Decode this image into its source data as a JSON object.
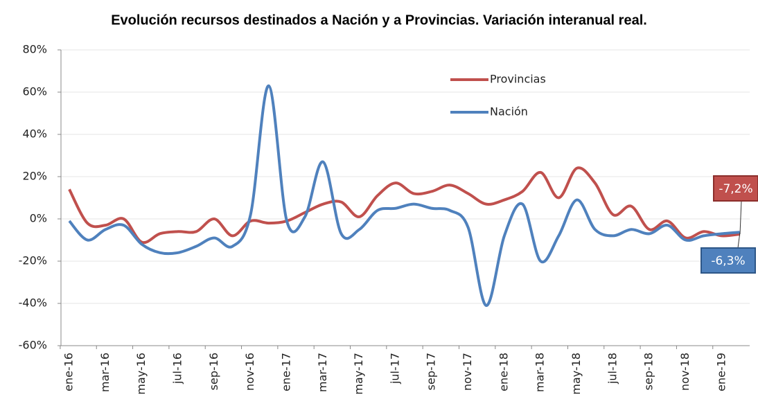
{
  "chart_data": {
    "type": "line",
    "title": "Evolución recursos destinados a Nación y a Provincias. Variación interanual real.",
    "categories": [
      "ene-16",
      null,
      "mar-16",
      null,
      "may-16",
      null,
      "jul-16",
      null,
      "sep-16",
      null,
      "nov-16",
      null,
      "ene-17",
      null,
      "mar-17",
      null,
      "may-17",
      null,
      "jul-17",
      null,
      "sep-17",
      null,
      "nov-17",
      null,
      "ene-18",
      null,
      "mar-18",
      null,
      "may-18",
      null,
      "jul-18",
      null,
      "sep-18",
      null,
      "nov-18",
      null,
      "ene-19",
      null
    ],
    "series": [
      {
        "name": "Provincias",
        "color": "#c0504d",
        "values": [
          14,
          -2,
          -3,
          0,
          -11,
          -7,
          -6,
          -6,
          0,
          -8,
          -1,
          -2,
          -1,
          3,
          7,
          8,
          1,
          11,
          17,
          12,
          13,
          16,
          12,
          7,
          9,
          13,
          22,
          10,
          24,
          17,
          2,
          6,
          -5,
          -1,
          -9,
          -6,
          -8,
          -7.2
        ],
        "value_labels": [
          null,
          null,
          null,
          null,
          null,
          null,
          null,
          null,
          null,
          null,
          null,
          null,
          null,
          null,
          null,
          null,
          null,
          null,
          null,
          null,
          null,
          null,
          null,
          null,
          null,
          null,
          null,
          null,
          null,
          null,
          null,
          null,
          null,
          null,
          null,
          null,
          null,
          "-7,2%"
        ]
      },
      {
        "name": "Nación",
        "color": "#4f81bd",
        "values": [
          -1,
          -10,
          -5,
          -3,
          -12,
          -16,
          -16,
          -13,
          -9,
          -13,
          2,
          63,
          -1,
          1,
          27,
          -7,
          -5,
          4,
          5,
          7,
          5,
          4,
          -4,
          -41,
          -8,
          7,
          -20,
          -8,
          9,
          -5,
          -8,
          -5,
          -7,
          -3,
          -10,
          -8,
          -7,
          -6.3
        ],
        "value_labels": [
          null,
          null,
          null,
          null,
          null,
          null,
          null,
          null,
          null,
          null,
          null,
          null,
          null,
          null,
          null,
          null,
          null,
          null,
          null,
          null,
          null,
          null,
          null,
          null,
          null,
          null,
          null,
          null,
          null,
          null,
          null,
          null,
          null,
          null,
          null,
          null,
          null,
          "-6,3%"
        ]
      }
    ],
    "ylim": [
      -60,
      80
    ],
    "yticks": [
      {
        "value": -60,
        "label": "-60%"
      },
      {
        "value": -40,
        "label": "-40%"
      },
      {
        "value": -20,
        "label": "-20%"
      },
      {
        "value": 0,
        "label": "0%"
      },
      {
        "value": 20,
        "label": "20%"
      },
      {
        "value": 40,
        "label": "40%"
      },
      {
        "value": 60,
        "label": "60%"
      },
      {
        "value": 80,
        "label": "80%"
      }
    ],
    "grid": true,
    "legend": "top"
  }
}
